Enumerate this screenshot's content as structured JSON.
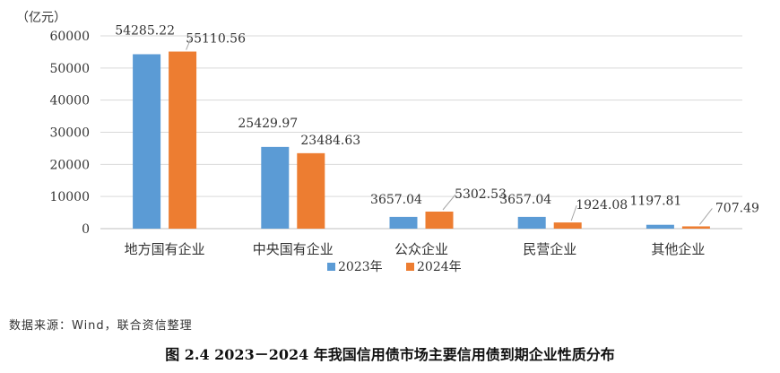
{
  "chart_data": {
    "type": "bar",
    "unit_label": "（亿元）",
    "categories": [
      "地方国有企业",
      "中央国有企业",
      "公众企业",
      "民营企业",
      "其他企业"
    ],
    "series": [
      {
        "name": "2023年",
        "color": "#5b9bd5",
        "values": [
          54285.22,
          25429.97,
          3657.04,
          3657.04,
          1197.81
        ],
        "labels": [
          "54285.22",
          "25429.97",
          "3657.04",
          "3657.04",
          "1197.81"
        ]
      },
      {
        "name": "2024年",
        "color": "#ed7d31",
        "values": [
          55110.56,
          23484.63,
          5302.53,
          1924.08,
          707.49
        ],
        "labels": [
          "55110.56",
          "23484.63",
          "5302.53",
          "1924.08",
          "707.49"
        ]
      }
    ],
    "ylim": [
      0,
      60000
    ],
    "yticks": [
      0,
      10000,
      20000,
      30000,
      40000,
      50000,
      60000
    ],
    "grid": true,
    "legend_position": "bottom"
  },
  "source": "数据来源：Wind，联合资信整理",
  "caption": "图 2.4    2023－2024 年我国信用债市场主要信用债到期企业性质分布"
}
